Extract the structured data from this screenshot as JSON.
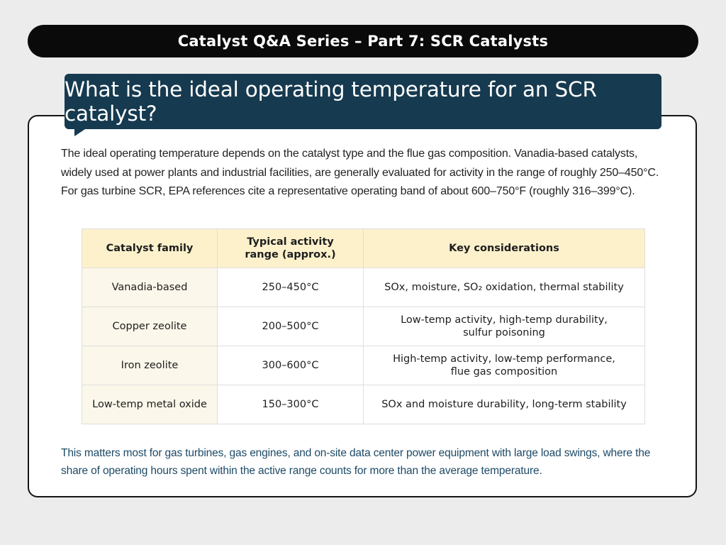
{
  "header": {
    "series_title": "Catalyst Q&A Series – Part 7: SCR Catalysts",
    "question": "What is the ideal operating temperature for an SCR catalyst?"
  },
  "intro_text": "The ideal operating temperature depends on the catalyst type and the flue gas composition. Vanadia-based catalysts, widely used at power plants and industrial facilities, are generally evaluated for activity in the range of roughly 250–450°C. For gas turbine SCR, EPA references cite a representative operating band of about 600–750°F (roughly 316–399°C).",
  "table": {
    "headers": [
      "Catalyst family",
      "Typical activity range (approx.)",
      "Key considerations"
    ],
    "rows": [
      {
        "family": "Vanadia-based",
        "range": "250–450°C",
        "considerations": "SOx, moisture, SO₂ oxidation, thermal stability"
      },
      {
        "family": "Copper zeolite",
        "range": "200–500°C",
        "considerations": "Low-temp activity, high-temp durability, sulfur poisoning"
      },
      {
        "family": "Iron zeolite",
        "range": "300–600°C",
        "considerations": "High-temp activity, low-temp performance, flue gas composition"
      },
      {
        "family": "Low-temp metal oxide",
        "range": "150–300°C",
        "considerations": "SOx and moisture durability, long-term stability"
      }
    ]
  },
  "outro_text": "This matters most for gas turbines, gas engines, and on-site data center power equipment with large load swings, where the share of operating hours spent within the active range counts for more than the average temperature.",
  "colors": {
    "banner_bg": "#0a0a0a",
    "question_bg": "#163a4f",
    "table_header_bg": "#fdf1cc",
    "family_cell_bg": "#fbf7ea",
    "outro_text": "#1d4a66"
  }
}
